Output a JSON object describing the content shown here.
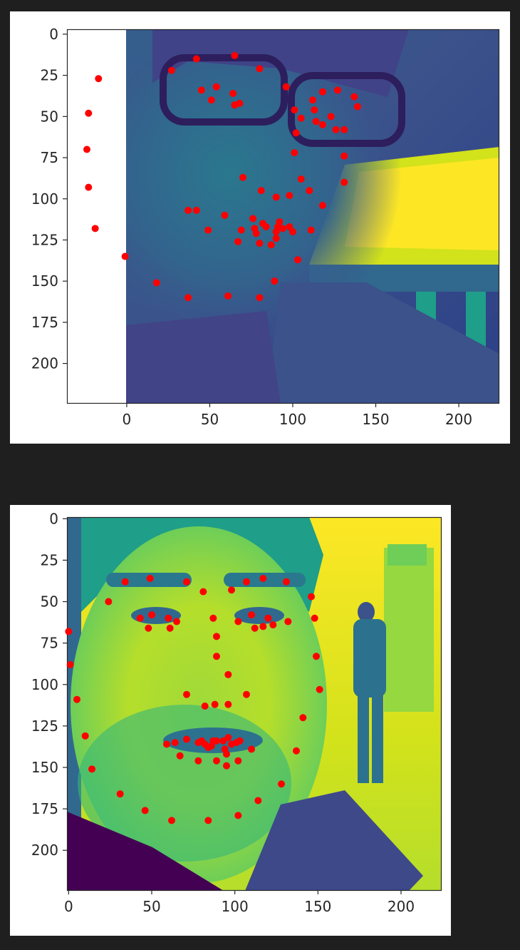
{
  "colors": {
    "page_background": "#1f1f1f",
    "figure_background": "#ffffff",
    "marker": "#ff0000",
    "axis": "#262626",
    "viridis_dark": "#440154",
    "viridis_mid": "#21918c",
    "viridis_bright": "#fde725"
  },
  "chart_data": [
    {
      "type": "scatter",
      "overlay": "grayscale face image rendered with viridis colormap",
      "image_extent": {
        "x": [
          0,
          224
        ],
        "y": [
          0,
          224
        ]
      },
      "xlim": [
        -36,
        224
      ],
      "ylim": [
        224,
        -3
      ],
      "xticks": [
        0,
        50,
        100,
        150,
        200
      ],
      "yticks": [
        0,
        25,
        50,
        75,
        100,
        125,
        150,
        175,
        200
      ],
      "marker_color": "#ff0000",
      "points": [
        [
          -17,
          27
        ],
        [
          -23,
          48
        ],
        [
          -24,
          70
        ],
        [
          -23,
          93
        ],
        [
          -19,
          118
        ],
        [
          -1,
          135
        ],
        [
          18,
          151
        ],
        [
          37,
          160
        ],
        [
          61,
          159
        ],
        [
          80,
          160
        ],
        [
          89,
          150
        ],
        [
          103,
          137
        ],
        [
          111,
          119
        ],
        [
          118,
          104
        ],
        [
          131,
          90
        ],
        [
          131,
          74
        ],
        [
          137,
          38
        ],
        [
          139,
          44
        ],
        [
          27,
          22
        ],
        [
          42,
          15
        ],
        [
          65,
          13
        ],
        [
          80,
          21
        ],
        [
          96,
          32
        ],
        [
          112,
          40
        ],
        [
          118,
          35
        ],
        [
          127,
          34
        ],
        [
          101,
          46
        ],
        [
          102,
          60
        ],
        [
          101,
          72
        ],
        [
          70,
          87
        ],
        [
          81,
          95
        ],
        [
          90,
          99
        ],
        [
          98,
          98
        ],
        [
          105,
          88
        ],
        [
          110,
          95
        ],
        [
          45,
          34
        ],
        [
          51,
          40
        ],
        [
          54,
          32
        ],
        [
          64,
          36
        ],
        [
          65,
          43
        ],
        [
          68,
          42
        ],
        [
          105,
          51
        ],
        [
          113,
          46
        ],
        [
          114,
          53
        ],
        [
          118,
          55
        ],
        [
          123,
          50
        ],
        [
          126,
          58
        ],
        [
          131,
          58
        ],
        [
          37,
          107
        ],
        [
          42,
          107
        ],
        [
          49,
          119
        ],
        [
          59,
          110
        ],
        [
          67,
          126
        ],
        [
          69,
          119
        ],
        [
          76,
          112
        ],
        [
          77,
          118
        ],
        [
          78,
          121
        ],
        [
          80,
          127
        ],
        [
          82,
          115
        ],
        [
          84,
          117
        ],
        [
          87,
          128
        ],
        [
          90,
          120
        ],
        [
          90,
          124
        ],
        [
          91,
          117
        ],
        [
          92,
          114
        ],
        [
          94,
          118
        ],
        [
          98,
          117
        ],
        [
          100,
          120
        ]
      ]
    },
    {
      "type": "scatter",
      "overlay": "grayscale face image rendered with viridis colormap",
      "image_extent": {
        "x": [
          0,
          224
        ],
        "y": [
          0,
          224
        ]
      },
      "xlim": [
        -1,
        224
      ],
      "ylim": [
        224,
        -1
      ],
      "xticks": [
        0,
        50,
        100,
        150,
        200
      ],
      "yticks": [
        0,
        25,
        50,
        75,
        100,
        125,
        150,
        175,
        200
      ],
      "marker_color": "#ff0000",
      "points": [
        [
          0,
          68
        ],
        [
          1,
          88
        ],
        [
          5,
          109
        ],
        [
          10,
          131
        ],
        [
          14,
          151
        ],
        [
          31,
          166
        ],
        [
          46,
          176
        ],
        [
          62,
          182
        ],
        [
          84,
          182
        ],
        [
          102,
          179
        ],
        [
          114,
          170
        ],
        [
          128,
          160
        ],
        [
          137,
          140
        ],
        [
          141,
          120
        ],
        [
          151,
          103
        ],
        [
          149,
          83
        ],
        [
          148,
          60
        ],
        [
          24,
          50
        ],
        [
          34,
          38
        ],
        [
          49,
          36
        ],
        [
          71,
          38
        ],
        [
          81,
          44
        ],
        [
          98,
          43
        ],
        [
          107,
          38
        ],
        [
          117,
          36
        ],
        [
          131,
          38
        ],
        [
          146,
          47
        ],
        [
          87,
          60
        ],
        [
          89,
          71
        ],
        [
          89,
          83
        ],
        [
          96,
          94
        ],
        [
          71,
          106
        ],
        [
          82,
          113
        ],
        [
          88,
          112
        ],
        [
          96,
          112
        ],
        [
          107,
          106
        ],
        [
          43,
          60
        ],
        [
          48,
          66
        ],
        [
          50,
          58
        ],
        [
          60,
          60
        ],
        [
          61,
          66
        ],
        [
          65,
          62
        ],
        [
          102,
          62
        ],
        [
          110,
          58
        ],
        [
          112,
          66
        ],
        [
          117,
          65
        ],
        [
          120,
          60
        ],
        [
          123,
          64
        ],
        [
          132,
          62
        ],
        [
          59,
          136
        ],
        [
          64,
          135
        ],
        [
          67,
          143
        ],
        [
          71,
          133
        ],
        [
          78,
          135
        ],
        [
          78,
          146
        ],
        [
          80,
          134
        ],
        [
          82,
          136
        ],
        [
          84,
          138
        ],
        [
          86,
          137
        ],
        [
          87,
          134
        ],
        [
          89,
          134
        ],
        [
          89,
          146
        ],
        [
          93,
          134
        ],
        [
          94,
          139
        ],
        [
          95,
          142
        ],
        [
          95,
          149
        ],
        [
          96,
          132
        ],
        [
          98,
          136
        ],
        [
          101,
          135
        ],
        [
          102,
          146
        ],
        [
          103,
          134
        ],
        [
          110,
          139
        ]
      ]
    }
  ]
}
